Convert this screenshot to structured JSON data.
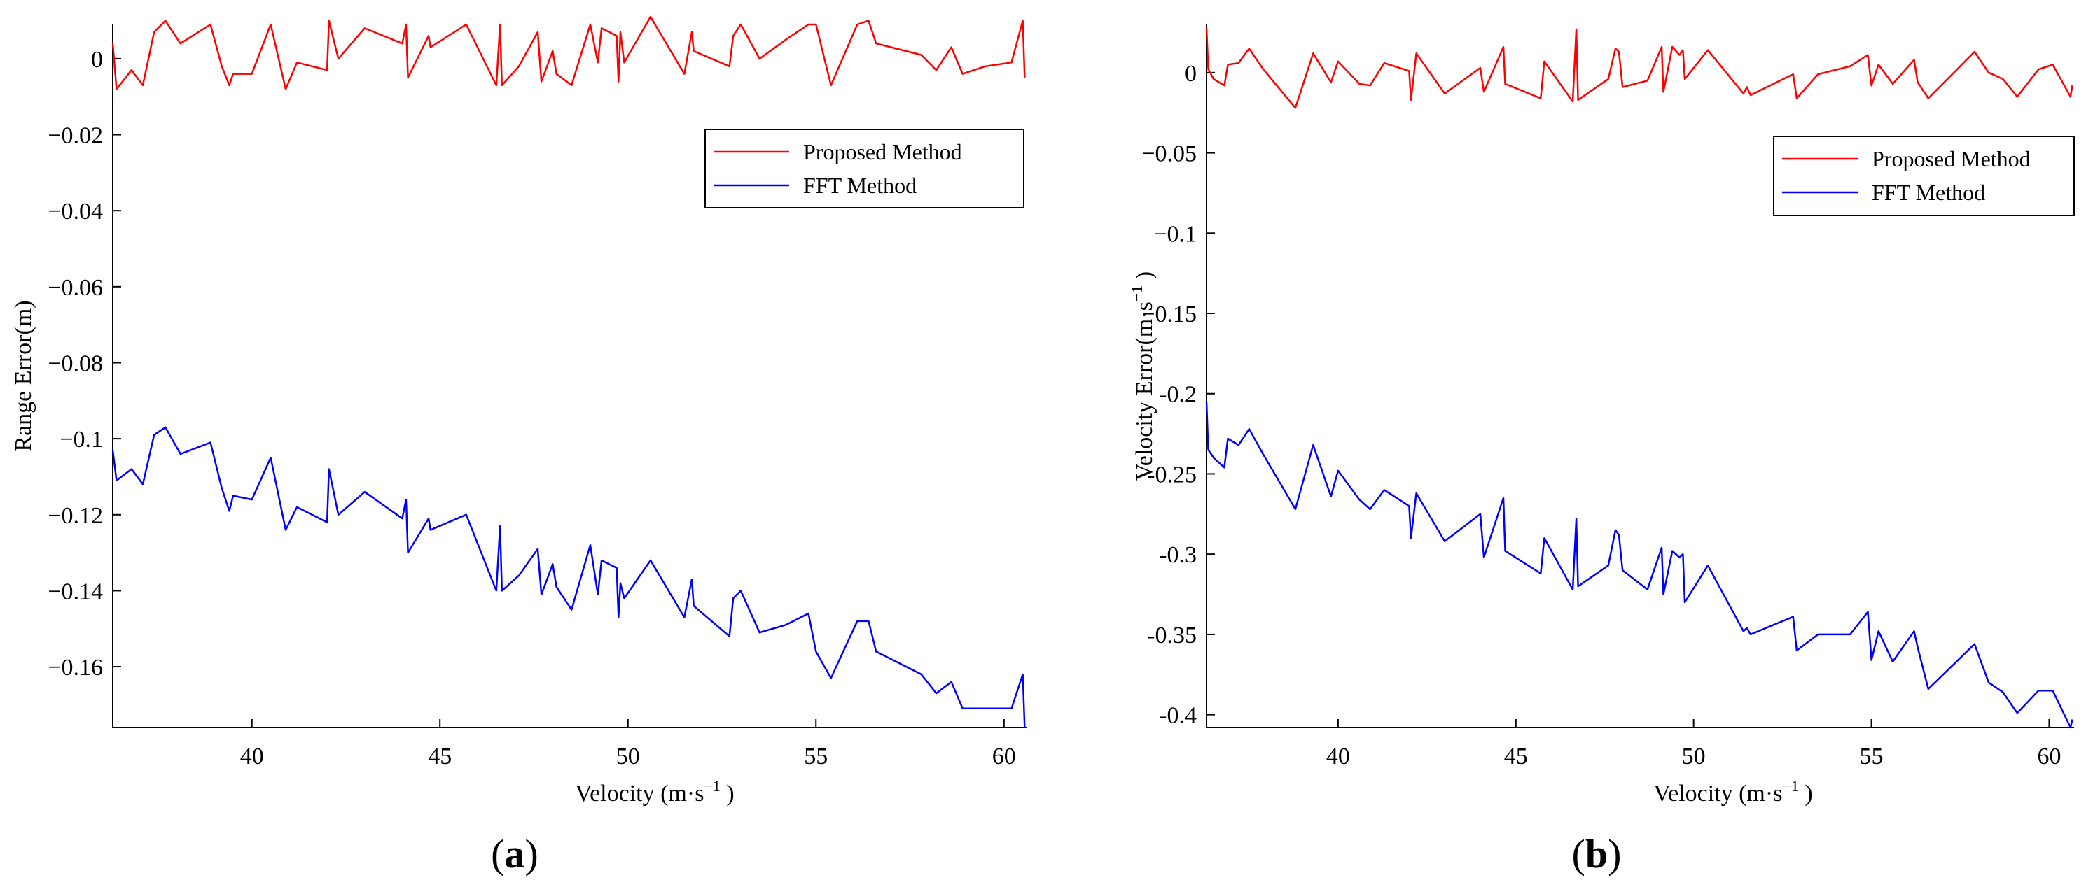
{
  "chart_data": [
    {
      "type": "line",
      "panel_label": "a",
      "xlabel": "Velocity (m·s",
      "xlabel_sup": "−1",
      "xlabel_close": " )",
      "ylabel": "Range Error(m)",
      "ylabel_sup": "",
      "ylabel_close": "",
      "xlim": [
        36.3,
        60.6
      ],
      "ylim": [
        -0.176,
        0.009
      ],
      "xticks": [
        40,
        45,
        50,
        55,
        60
      ],
      "xtick_labels": [
        "40",
        "45",
        "50",
        "55",
        "60"
      ],
      "yticks": [
        0,
        -0.02,
        -0.04,
        -0.06,
        -0.08,
        -0.1,
        -0.12,
        -0.14,
        -0.16
      ],
      "ytick_labels": [
        "0",
        "−0.02",
        "−0.04",
        "−0.06",
        "−0.08",
        "−0.1",
        "−0.12",
        "−0.14",
        "−0.16"
      ],
      "legend": [
        "Proposed Method",
        "FFT Method"
      ],
      "series": [
        {
          "name": "Proposed Method",
          "color": "#ff0000",
          "points": [
            [
              36.3,
              0.004
            ],
            [
              36.4,
              -0.008
            ],
            [
              36.8,
              -0.003
            ],
            [
              37.1,
              -0.007
            ],
            [
              37.4,
              0.007
            ],
            [
              37.7,
              0.01
            ],
            [
              38.1,
              0.004
            ],
            [
              38.9,
              0.009
            ],
            [
              39.2,
              -0.002
            ],
            [
              39.4,
              -0.007
            ],
            [
              39.5,
              -0.004
            ],
            [
              40.0,
              -0.004
            ],
            [
              40.5,
              0.009
            ],
            [
              40.9,
              -0.008
            ],
            [
              41.2,
              -0.001
            ],
            [
              42.0,
              -0.003
            ],
            [
              42.05,
              0.01
            ],
            [
              42.3,
              0.0
            ],
            [
              43.0,
              0.008
            ],
            [
              44.0,
              0.004
            ],
            [
              44.1,
              0.009
            ],
            [
              44.15,
              -0.005
            ],
            [
              44.7,
              0.006
            ],
            [
              44.75,
              0.003
            ],
            [
              45.7,
              0.009
            ],
            [
              46.5,
              -0.007
            ],
            [
              46.6,
              0.009
            ],
            [
              46.65,
              -0.007
            ],
            [
              47.1,
              -0.002
            ],
            [
              47.6,
              0.007
            ],
            [
              47.7,
              -0.006
            ],
            [
              48.0,
              0.002
            ],
            [
              48.1,
              -0.004
            ],
            [
              48.5,
              -0.007
            ],
            [
              49.0,
              0.009
            ],
            [
              49.2,
              -0.001
            ],
            [
              49.3,
              0.008
            ],
            [
              49.7,
              0.006
            ],
            [
              49.75,
              -0.006
            ],
            [
              49.8,
              0.007
            ],
            [
              49.9,
              -0.001
            ],
            [
              50.6,
              0.011
            ],
            [
              51.5,
              -0.004
            ],
            [
              51.7,
              0.007
            ],
            [
              51.75,
              0.002
            ],
            [
              52.7,
              -0.002
            ],
            [
              52.8,
              0.006
            ],
            [
              53.0,
              0.009
            ],
            [
              53.5,
              0.0
            ],
            [
              54.2,
              0.005
            ],
            [
              54.8,
              0.009
            ],
            [
              55.0,
              0.009
            ],
            [
              55.4,
              -0.007
            ],
            [
              56.1,
              0.009
            ],
            [
              56.4,
              0.01
            ],
            [
              56.6,
              0.004
            ],
            [
              57.8,
              0.001
            ],
            [
              58.2,
              -0.003
            ],
            [
              58.6,
              0.003
            ],
            [
              58.9,
              -0.004
            ],
            [
              59.5,
              -0.002
            ],
            [
              60.2,
              -0.001
            ],
            [
              60.5,
              0.01
            ],
            [
              60.55,
              -0.005
            ]
          ]
        },
        {
          "name": "FFT Method",
          "color": "#0000ff",
          "points": [
            [
              36.3,
              -0.103
            ],
            [
              36.4,
              -0.111
            ],
            [
              36.8,
              -0.108
            ],
            [
              37.1,
              -0.112
            ],
            [
              37.4,
              -0.099
            ],
            [
              37.7,
              -0.097
            ],
            [
              38.1,
              -0.104
            ],
            [
              38.9,
              -0.101
            ],
            [
              39.2,
              -0.113
            ],
            [
              39.4,
              -0.119
            ],
            [
              39.5,
              -0.115
            ],
            [
              40.0,
              -0.116
            ],
            [
              40.5,
              -0.105
            ],
            [
              40.9,
              -0.124
            ],
            [
              41.2,
              -0.118
            ],
            [
              42.0,
              -0.122
            ],
            [
              42.05,
              -0.108
            ],
            [
              42.3,
              -0.12
            ],
            [
              43.0,
              -0.114
            ],
            [
              44.0,
              -0.121
            ],
            [
              44.1,
              -0.116
            ],
            [
              44.15,
              -0.13
            ],
            [
              44.7,
              -0.121
            ],
            [
              44.75,
              -0.124
            ],
            [
              45.7,
              -0.12
            ],
            [
              46.5,
              -0.14
            ],
            [
              46.6,
              -0.123
            ],
            [
              46.65,
              -0.14
            ],
            [
              47.1,
              -0.136
            ],
            [
              47.6,
              -0.129
            ],
            [
              47.7,
              -0.141
            ],
            [
              48.0,
              -0.133
            ],
            [
              48.1,
              -0.139
            ],
            [
              48.5,
              -0.145
            ],
            [
              49.0,
              -0.128
            ],
            [
              49.2,
              -0.141
            ],
            [
              49.3,
              -0.132
            ],
            [
              49.7,
              -0.134
            ],
            [
              49.75,
              -0.147
            ],
            [
              49.8,
              -0.138
            ],
            [
              49.9,
              -0.142
            ],
            [
              50.6,
              -0.132
            ],
            [
              51.5,
              -0.147
            ],
            [
              51.7,
              -0.137
            ],
            [
              51.75,
              -0.144
            ],
            [
              52.7,
              -0.152
            ],
            [
              52.8,
              -0.142
            ],
            [
              53.0,
              -0.14
            ],
            [
              53.5,
              -0.151
            ],
            [
              54.2,
              -0.149
            ],
            [
              54.8,
              -0.146
            ],
            [
              55.0,
              -0.156
            ],
            [
              55.4,
              -0.163
            ],
            [
              56.1,
              -0.148
            ],
            [
              56.4,
              -0.148
            ],
            [
              56.6,
              -0.156
            ],
            [
              57.8,
              -0.162
            ],
            [
              58.2,
              -0.167
            ],
            [
              58.6,
              -0.164
            ],
            [
              58.9,
              -0.171
            ],
            [
              59.5,
              -0.171
            ],
            [
              60.2,
              -0.171
            ],
            [
              60.5,
              -0.162
            ],
            [
              60.55,
              -0.176
            ]
          ]
        }
      ]
    },
    {
      "type": "line",
      "panel_label": "b",
      "xlabel": "Velocity (m·s",
      "xlabel_sup": "−1",
      "xlabel_close": " )",
      "ylabel": "Velocity Error(m·s",
      "ylabel_sup": "−1",
      "ylabel_close": " )",
      "xlim": [
        36.3,
        60.7
      ],
      "ylim": [
        -0.408,
        0.03
      ],
      "xticks": [
        40,
        45,
        50,
        55,
        60
      ],
      "xtick_labels": [
        "40",
        "45",
        "50",
        "55",
        "60"
      ],
      "yticks": [
        0,
        -0.05,
        -0.1,
        -0.15,
        -0.2,
        -0.25,
        -0.3,
        -0.35,
        -0.4
      ],
      "ytick_labels": [
        "0",
        "−0.05",
        "−0.1",
        "−0.15",
        "-0.2",
        "-0.25",
        "-0.3",
        "-0.35",
        "-0.4"
      ],
      "legend": [
        "Proposed Method",
        "FFT Method"
      ],
      "series": [
        {
          "name": "Proposed Method",
          "color": "#ff0000",
          "points": [
            [
              36.3,
              0.028
            ],
            [
              36.35,
              0.002
            ],
            [
              36.5,
              -0.004
            ],
            [
              36.8,
              -0.008
            ],
            [
              36.9,
              0.005
            ],
            [
              37.2,
              0.006
            ],
            [
              37.5,
              0.015
            ],
            [
              37.9,
              0.002
            ],
            [
              38.8,
              -0.022
            ],
            [
              39.3,
              0.012
            ],
            [
              39.8,
              -0.006
            ],
            [
              40.0,
              0.007
            ],
            [
              40.6,
              -0.007
            ],
            [
              40.9,
              -0.008
            ],
            [
              41.3,
              0.006
            ],
            [
              42.0,
              0.001
            ],
            [
              42.05,
              -0.017
            ],
            [
              42.2,
              0.012
            ],
            [
              43.0,
              -0.013
            ],
            [
              44.0,
              0.003
            ],
            [
              44.1,
              -0.012
            ],
            [
              44.65,
              0.016
            ],
            [
              44.7,
              -0.007
            ],
            [
              45.7,
              -0.016
            ],
            [
              45.8,
              0.007
            ],
            [
              46.6,
              -0.018
            ],
            [
              46.7,
              0.027
            ],
            [
              46.75,
              -0.017
            ],
            [
              47.6,
              -0.004
            ],
            [
              47.8,
              0.015
            ],
            [
              47.9,
              0.013
            ],
            [
              48.0,
              -0.009
            ],
            [
              48.7,
              -0.005
            ],
            [
              49.1,
              0.016
            ],
            [
              49.15,
              -0.012
            ],
            [
              49.4,
              0.016
            ],
            [
              49.6,
              0.011
            ],
            [
              49.7,
              0.014
            ],
            [
              49.75,
              -0.004
            ],
            [
              50.4,
              0.014
            ],
            [
              51.4,
              -0.013
            ],
            [
              51.5,
              -0.009
            ],
            [
              51.6,
              -0.014
            ],
            [
              52.8,
              -0.001
            ],
            [
              52.9,
              -0.016
            ],
            [
              53.5,
              -0.001
            ],
            [
              54.4,
              0.004
            ],
            [
              54.9,
              0.011
            ],
            [
              55.0,
              -0.008
            ],
            [
              55.2,
              0.005
            ],
            [
              55.6,
              -0.007
            ],
            [
              56.2,
              0.008
            ],
            [
              56.3,
              -0.006
            ],
            [
              56.6,
              -0.016
            ],
            [
              57.9,
              0.013
            ],
            [
              58.3,
              0.0
            ],
            [
              58.7,
              -0.004
            ],
            [
              59.1,
              -0.015
            ],
            [
              59.7,
              0.002
            ],
            [
              60.1,
              0.005
            ],
            [
              60.6,
              -0.015
            ],
            [
              60.65,
              -0.008
            ]
          ]
        },
        {
          "name": "FFT Method",
          "color": "#0000ff",
          "points": [
            [
              36.3,
              -0.205
            ],
            [
              36.35,
              -0.235
            ],
            [
              36.5,
              -0.24
            ],
            [
              36.8,
              -0.246
            ],
            [
              36.9,
              -0.228
            ],
            [
              37.2,
              -0.232
            ],
            [
              37.5,
              -0.222
            ],
            [
              37.9,
              -0.238
            ],
            [
              38.8,
              -0.272
            ],
            [
              39.3,
              -0.232
            ],
            [
              39.8,
              -0.264
            ],
            [
              40.0,
              -0.248
            ],
            [
              40.6,
              -0.266
            ],
            [
              40.9,
              -0.272
            ],
            [
              41.3,
              -0.26
            ],
            [
              42.0,
              -0.27
            ],
            [
              42.05,
              -0.29
            ],
            [
              42.2,
              -0.262
            ],
            [
              43.0,
              -0.292
            ],
            [
              44.0,
              -0.275
            ],
            [
              44.1,
              -0.302
            ],
            [
              44.65,
              -0.265
            ],
            [
              44.7,
              -0.298
            ],
            [
              45.7,
              -0.312
            ],
            [
              45.8,
              -0.29
            ],
            [
              46.6,
              -0.322
            ],
            [
              46.7,
              -0.278
            ],
            [
              46.75,
              -0.32
            ],
            [
              47.6,
              -0.307
            ],
            [
              47.8,
              -0.285
            ],
            [
              47.9,
              -0.288
            ],
            [
              48.0,
              -0.31
            ],
            [
              48.7,
              -0.322
            ],
            [
              49.1,
              -0.296
            ],
            [
              49.15,
              -0.325
            ],
            [
              49.4,
              -0.298
            ],
            [
              49.6,
              -0.302
            ],
            [
              49.7,
              -0.3
            ],
            [
              49.75,
              -0.33
            ],
            [
              50.4,
              -0.307
            ],
            [
              51.4,
              -0.348
            ],
            [
              51.5,
              -0.346
            ],
            [
              51.6,
              -0.35
            ],
            [
              52.8,
              -0.339
            ],
            [
              52.9,
              -0.36
            ],
            [
              53.5,
              -0.35
            ],
            [
              54.4,
              -0.35
            ],
            [
              54.9,
              -0.336
            ],
            [
              55.0,
              -0.366
            ],
            [
              55.2,
              -0.348
            ],
            [
              55.6,
              -0.367
            ],
            [
              56.2,
              -0.348
            ],
            [
              56.3,
              -0.358
            ],
            [
              56.6,
              -0.384
            ],
            [
              57.9,
              -0.356
            ],
            [
              58.3,
              -0.38
            ],
            [
              58.7,
              -0.386
            ],
            [
              59.1,
              -0.399
            ],
            [
              59.7,
              -0.385
            ],
            [
              60.1,
              -0.385
            ],
            [
              60.6,
              -0.408
            ],
            [
              60.65,
              -0.403
            ]
          ]
        }
      ]
    }
  ]
}
